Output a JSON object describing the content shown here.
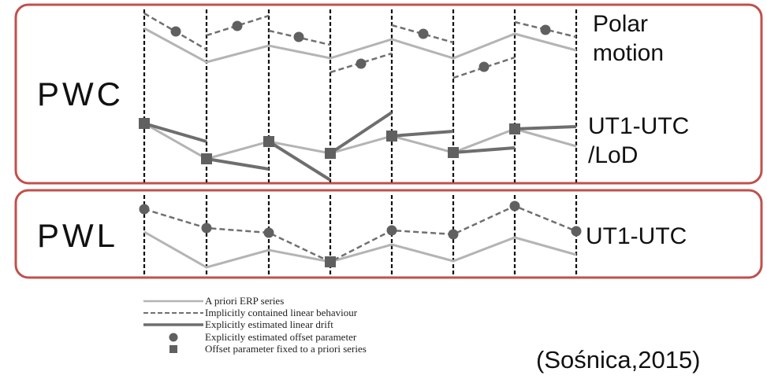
{
  "panels": {
    "pwc": {
      "label": "PWC"
    },
    "pwl": {
      "label": "PWL"
    }
  },
  "side_labels": {
    "polar_motion": [
      "Polar",
      "motion"
    ],
    "ut1_lod": [
      "UT1-UTC",
      "/LoD"
    ],
    "ut1_pwl": "UT1-UTC"
  },
  "legend": [
    {
      "symbol": "solid-light-line",
      "text": "A priori ERP series"
    },
    {
      "symbol": "dashed-line",
      "text": "Implicitly contained linear behaviour"
    },
    {
      "symbol": "solid-dark-line",
      "text": "Explicitly estimated linear drift"
    },
    {
      "symbol": "circle-marker",
      "text": "Explicitly estimated offset parameter"
    },
    {
      "symbol": "square-marker",
      "text": "Offset parameter fixed to a priori series"
    }
  ],
  "citation": "(Sośnica,2015)",
  "colors": {
    "panel_border": "#c0504d",
    "apriori_line": "#b4b4b4",
    "dashed_line": "#707070",
    "drift_line": "#6e6e6e",
    "marker": "#606060",
    "grid_line": "#111111"
  }
}
